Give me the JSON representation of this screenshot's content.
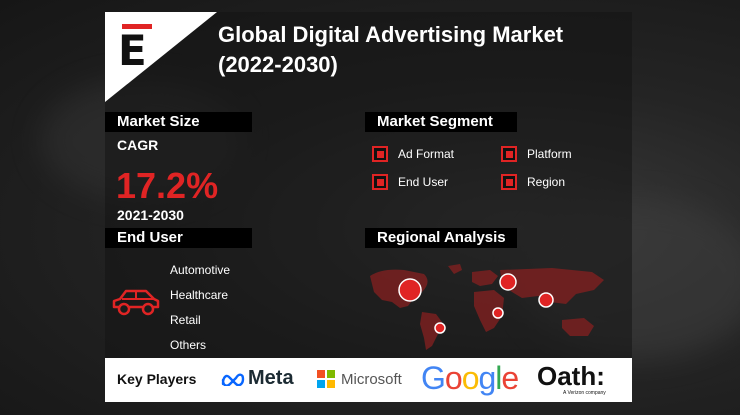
{
  "title": "Global Digital Advertising Market\n(2022-2030)",
  "logo": {
    "letter": "E",
    "accent": "#e02424"
  },
  "market_size": {
    "heading": "Market Size",
    "cagr_label": "CAGR",
    "cagr_value": "17.2%",
    "period": "2021-2030"
  },
  "market_segment": {
    "heading": "Market Segment",
    "items": [
      "Ad Format",
      "Platform",
      "End User",
      "Region"
    ]
  },
  "end_user": {
    "heading": "End User",
    "items": [
      "Automotive",
      "Healthcare",
      "Retail",
      "Others"
    ],
    "icon": "car-icon"
  },
  "regional_analysis": {
    "heading": "Regional Analysis",
    "icon": "world-map"
  },
  "key_players": {
    "label": "Key Players",
    "companies": [
      "Meta",
      "Microsoft",
      "Google",
      "Oath:"
    ],
    "oath_tagline": "A Verizon company"
  },
  "colors": {
    "accent": "#e02424",
    "background": "#1b1b1b",
    "header_bg": "#000000"
  }
}
